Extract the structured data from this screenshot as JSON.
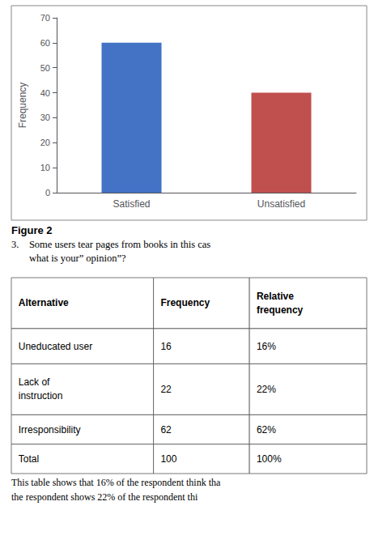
{
  "chart_data": {
    "type": "bar",
    "categories": [
      "Satisfied",
      "Unsatisfied"
    ],
    "values": [
      60,
      40
    ],
    "colors": [
      "#4472C4",
      "#C0504D"
    ],
    "ylabel": "Frequency",
    "ylim": [
      0,
      70
    ],
    "yticks": [
      0,
      10,
      20,
      30,
      40,
      50,
      60,
      70
    ],
    "grid": false,
    "annotations": [
      "Figure 2",
      "3.    Some users tear pages from books in this cas",
      "       what is your” opinion”?",
      "This table shows that 16% of the respondent think tha",
      "the respondent shows 22% of the respondent thi"
    ]
  },
  "table": {
    "headers": [
      "Alternative",
      "Frequency",
      "Relative\nfrequency"
    ],
    "rows": [
      [
        "Uneducated user",
        "16",
        "16%"
      ],
      [
        "Lack of\ninstruction",
        "22",
        "22%"
      ],
      [
        "Irresponsibility",
        "62",
        "62%"
      ],
      [
        "Total",
        "100",
        "100%"
      ]
    ]
  }
}
